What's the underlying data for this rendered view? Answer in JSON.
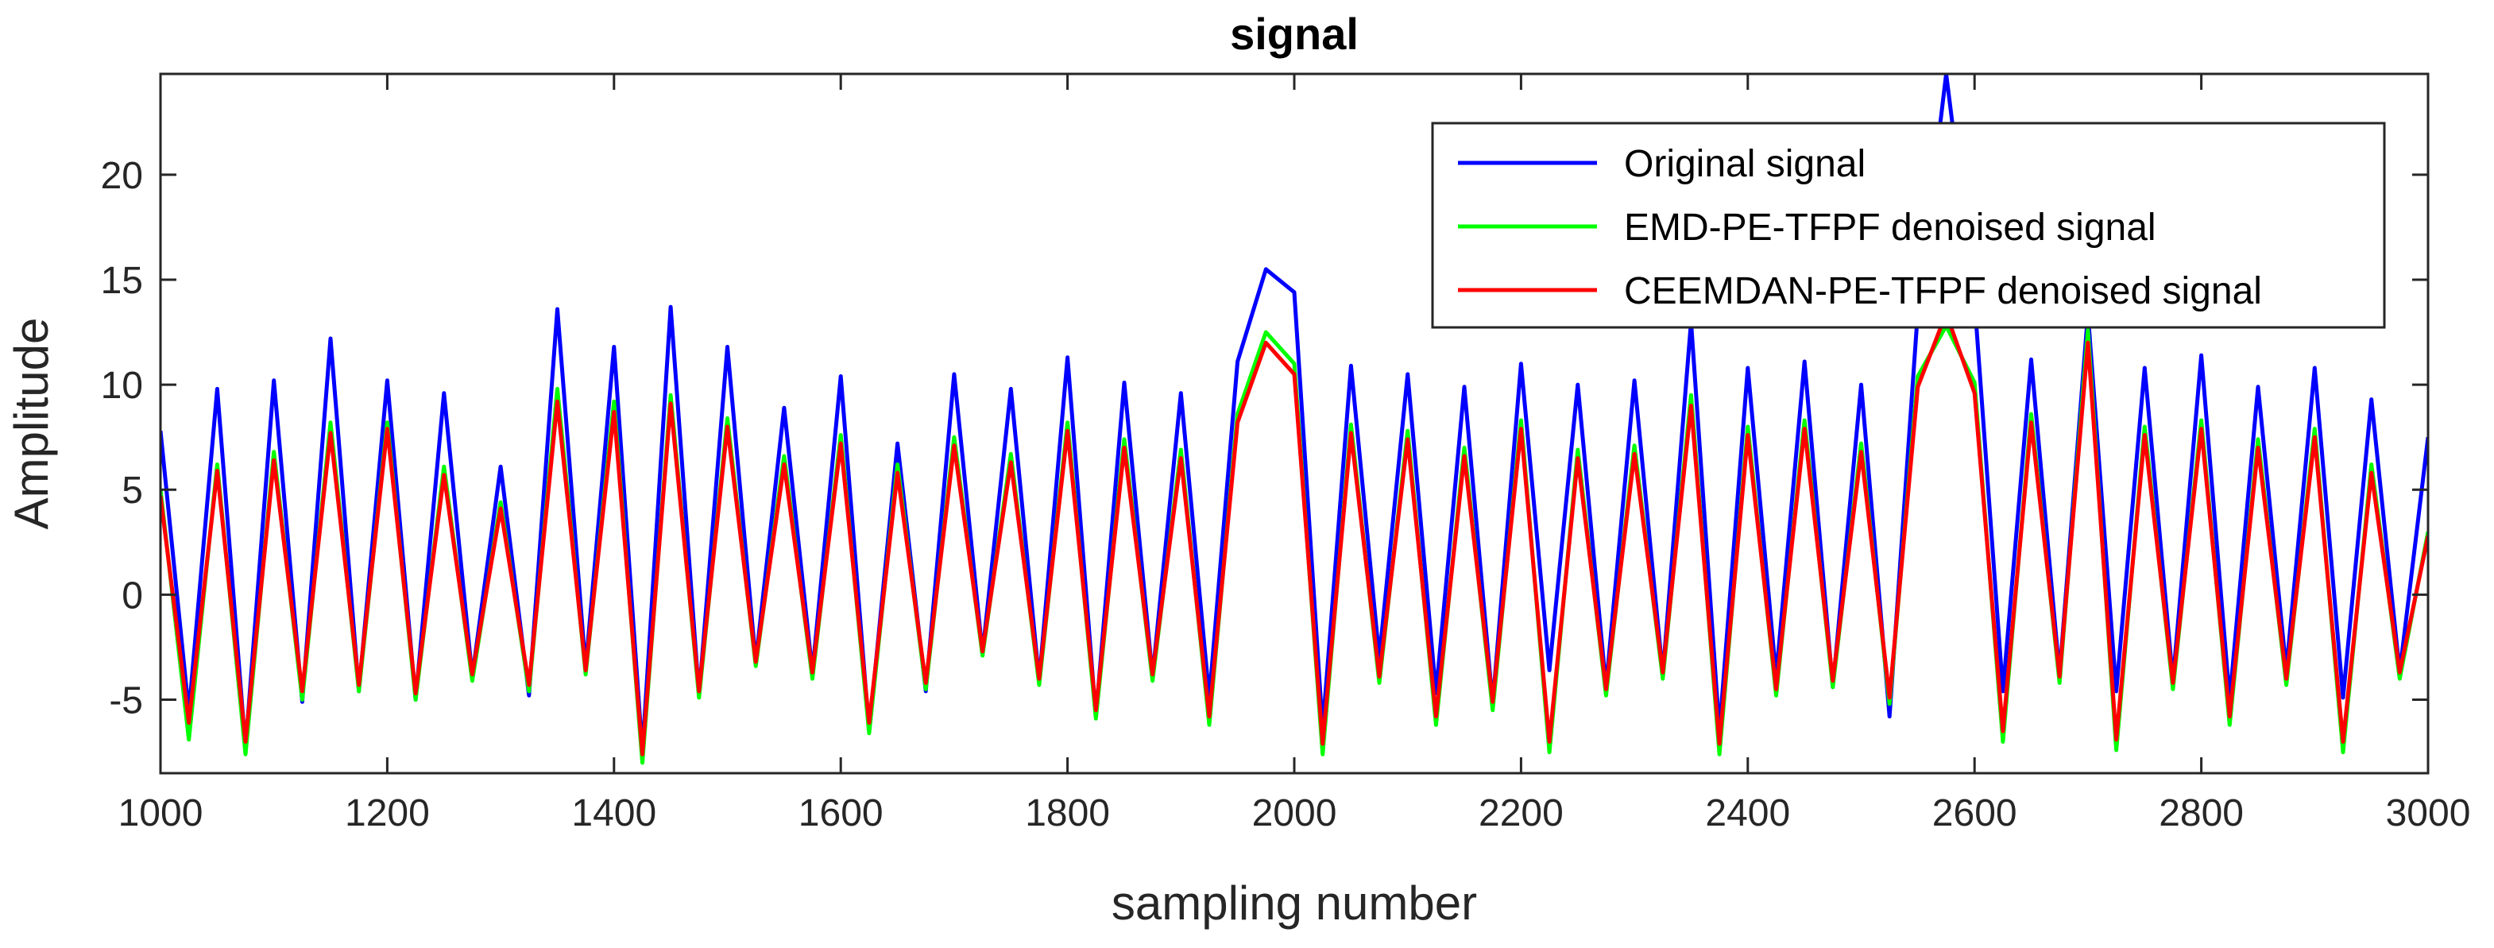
{
  "chart_data": {
    "type": "line",
    "title": "signal",
    "xlabel": "sampling number",
    "ylabel": "Amplitude",
    "xlim": [
      1000,
      3000
    ],
    "ylim": [
      -8.5,
      24.8
    ],
    "xticks": [
      1000,
      1200,
      1400,
      1600,
      1800,
      2000,
      2200,
      2400,
      2600,
      2800,
      3000
    ],
    "yticks": [
      -5,
      0,
      5,
      10,
      15,
      20
    ],
    "x": [
      1000,
      1025,
      1050,
      1075,
      1100,
      1125,
      1150,
      1175,
      1200,
      1225,
      1250,
      1275,
      1300,
      1325,
      1350,
      1375,
      1400,
      1425,
      1450,
      1475,
      1500,
      1525,
      1550,
      1575,
      1600,
      1625,
      1650,
      1675,
      1700,
      1725,
      1750,
      1775,
      1800,
      1825,
      1850,
      1875,
      1900,
      1925,
      1950,
      1975,
      2000,
      2025,
      2050,
      2075,
      2100,
      2125,
      2150,
      2175,
      2200,
      2225,
      2250,
      2275,
      2300,
      2325,
      2350,
      2375,
      2400,
      2425,
      2450,
      2475,
      2500,
      2525,
      2550,
      2575,
      2600,
      2625,
      2650,
      2675,
      2700,
      2725,
      2750,
      2775,
      2800,
      2825,
      2850,
      2875,
      2900,
      2925,
      2950,
      2975,
      3000
    ],
    "series": [
      {
        "name": "Original signal",
        "color": "#0000FF",
        "values": [
          7.8,
          -5.6,
          9.8,
          -7.3,
          10.2,
          -5.1,
          12.2,
          -4.6,
          10.2,
          -5.0,
          9.6,
          -3.9,
          6.1,
          -4.8,
          13.6,
          -3.5,
          11.8,
          -7.5,
          13.7,
          -4.8,
          11.8,
          -3.2,
          8.9,
          -3.7,
          10.4,
          -6.5,
          7.2,
          -4.6,
          10.5,
          -2.8,
          9.8,
          -4.1,
          11.3,
          -5.8,
          10.1,
          -3.9,
          9.6,
          -4.9,
          11.1,
          15.5,
          14.4,
          -6.4,
          10.9,
          -3.0,
          10.5,
          -4.7,
          9.9,
          -5.2,
          11.0,
          -3.6,
          10.0,
          -4.4,
          10.2,
          -3.8,
          13.0,
          -6.5,
          10.8,
          -3.9,
          11.1,
          -4.4,
          10.0,
          -5.8,
          13.5,
          24.8,
          14.0,
          -4.6,
          11.2,
          -3.8,
          13.4,
          -4.6,
          10.8,
          -4.1,
          11.4,
          -5.0,
          9.9,
          -3.6,
          10.8,
          -4.9,
          9.3,
          -3.7,
          7.5
        ]
      },
      {
        "name": "EMD-PE-TFPF denoised signal",
        "color": "#00FF00",
        "values": [
          5.0,
          -6.9,
          6.2,
          -7.6,
          6.8,
          -5.0,
          8.2,
          -4.6,
          8.2,
          -5.0,
          6.1,
          -4.1,
          4.4,
          -4.6,
          9.8,
          -3.8,
          9.2,
          -8.0,
          9.5,
          -4.9,
          8.4,
          -3.4,
          6.6,
          -4.0,
          7.6,
          -6.6,
          6.2,
          -4.5,
          7.5,
          -2.9,
          6.7,
          -4.3,
          8.2,
          -5.9,
          7.4,
          -4.1,
          6.9,
          -6.2,
          8.6,
          12.5,
          11.0,
          -7.6,
          8.1,
          -4.2,
          7.8,
          -6.2,
          7.0,
          -5.5,
          8.3,
          -7.5,
          6.9,
          -4.8,
          7.1,
          -4.0,
          9.5,
          -7.6,
          8.0,
          -4.8,
          8.3,
          -4.4,
          7.2,
          -5.2,
          10.4,
          12.8,
          10.1,
          -7.0,
          8.6,
          -4.2,
          12.6,
          -7.4,
          8.0,
          -4.5,
          8.3,
          -6.2,
          7.4,
          -4.3,
          7.9,
          -7.5,
          6.2,
          -4.0,
          3.0
        ]
      },
      {
        "name": "CEEMDAN-PE-TFPF denoised signal",
        "color": "#FF0000",
        "values": [
          4.7,
          -6.1,
          5.9,
          -7.0,
          6.4,
          -4.6,
          7.7,
          -4.3,
          7.9,
          -4.7,
          5.7,
          -3.8,
          4.1,
          -4.3,
          9.2,
          -3.6,
          8.7,
          -7.6,
          9.1,
          -4.6,
          8.0,
          -3.2,
          6.2,
          -3.7,
          7.2,
          -6.1,
          5.8,
          -4.2,
          7.1,
          -2.7,
          6.3,
          -4.0,
          7.8,
          -5.5,
          7.0,
          -3.8,
          6.5,
          -5.8,
          8.2,
          12.0,
          10.5,
          -7.1,
          7.7,
          -3.9,
          7.4,
          -5.8,
          6.6,
          -5.1,
          7.9,
          -7.0,
          6.5,
          -4.5,
          6.7,
          -3.7,
          9.0,
          -7.1,
          7.6,
          -4.5,
          7.9,
          -4.1,
          6.8,
          -4.9,
          9.9,
          13.4,
          9.6,
          -6.5,
          8.2,
          -3.9,
          12.0,
          -6.9,
          7.6,
          -4.2,
          7.9,
          -5.8,
          7.0,
          -4.0,
          7.5,
          -7.0,
          5.8,
          -3.7,
          2.8
        ]
      }
    ],
    "legend": {
      "position": "top-right",
      "entries": [
        "Original signal",
        "EMD-PE-TFPF denoised signal",
        "CEEMDAN-PE-TFPF denoised signal"
      ]
    },
    "grid": false
  }
}
